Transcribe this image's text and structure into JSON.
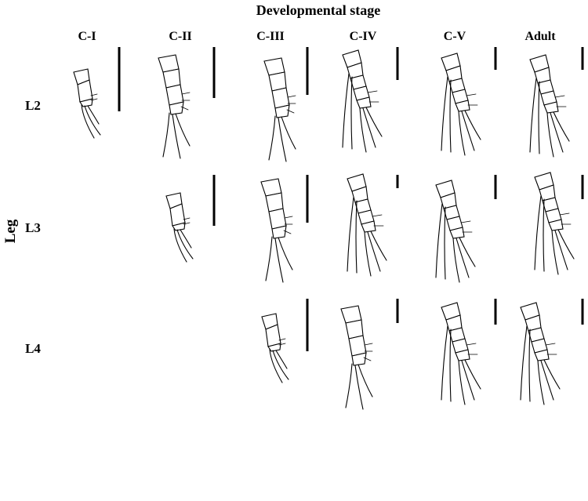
{
  "figure": {
    "title": "Developmental stage",
    "y_axis_label": "Leg",
    "stages": [
      "C-I",
      "C-II",
      "C-III",
      "C-IV",
      "C-V",
      "Adult"
    ],
    "legs": [
      "L2",
      "L3",
      "L4"
    ]
  }
}
